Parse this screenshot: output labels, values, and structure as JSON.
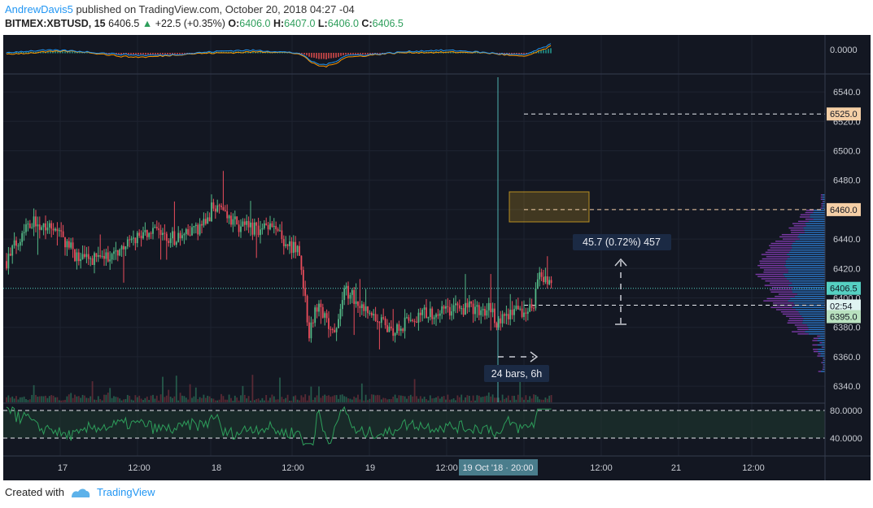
{
  "header": {
    "author": "AndrewDavis5",
    "published_text": "published on TradingView.com, October 20, 2018 04:27 -04",
    "symbol": "BITMEX:XBTUSD, 15",
    "last": "6406.5",
    "change": "+22.5 (+0.35%)",
    "o_label": "O:",
    "o": "6406.0",
    "h_label": "H:",
    "h": "6407.0",
    "l_label": "L:",
    "l": "6406.0",
    "c_label": "C:",
    "c": "6406.5"
  },
  "macd_pane": {
    "axis_label": "0.0000"
  },
  "price_axis": {
    "ticks": [
      "6540.0",
      "6520.0",
      "6500.0",
      "6480.0",
      "6460.0",
      "6440.0",
      "6420.0",
      "6400.0",
      "6380.0",
      "6360.0",
      "6340.0"
    ],
    "tick_values": [
      6540,
      6520,
      6500,
      6480,
      6460,
      6440,
      6420,
      6400,
      6380,
      6360,
      6340
    ],
    "range": [
      6329,
      6550
    ]
  },
  "price_tags": [
    {
      "label": "6525.0",
      "value": 6525,
      "bg": "#f5cfa6",
      "fg": "#131722"
    },
    {
      "label": "6460.0",
      "value": 6460,
      "bg": "#f5cfa6",
      "fg": "#131722"
    },
    {
      "label": "6406.5",
      "value": 6406.5,
      "bg": "#55d0c2",
      "fg": "#131722"
    },
    {
      "label": "02:54",
      "value": 6394.5,
      "bg": "#dff3f1",
      "fg": "#131722",
      "time": true
    },
    {
      "label": "6395.0",
      "value": 6395,
      "bg": "#b9e1bf",
      "fg": "#131722",
      "offset": 14
    }
  ],
  "rsi_pane": {
    "labels": [
      "80.0000",
      "40.0000"
    ],
    "levels": [
      80,
      40
    ]
  },
  "time_axis": {
    "labels": [
      "17",
      "12:00",
      "18",
      "12:00",
      "19",
      "12:00",
      "12:00",
      "21",
      "12:00"
    ],
    "highlight": "19 Oct '18 · 20:00"
  },
  "measure": {
    "label": "45.7 (0.72%) 457"
  },
  "bars_label": {
    "label": "24 bars, 6h"
  },
  "footer": {
    "created_with": "Created with",
    "brand": "TradingView"
  },
  "colors": {
    "up": "#53b987",
    "down": "#eb4d5c",
    "bg": "#131722",
    "grid": "#1e2330",
    "macd": "#2196f3",
    "signal": "#ff9800",
    "rsi": "#2e9e5b",
    "zone": "#e6b022",
    "dashed": "#e8eaf0"
  }
}
